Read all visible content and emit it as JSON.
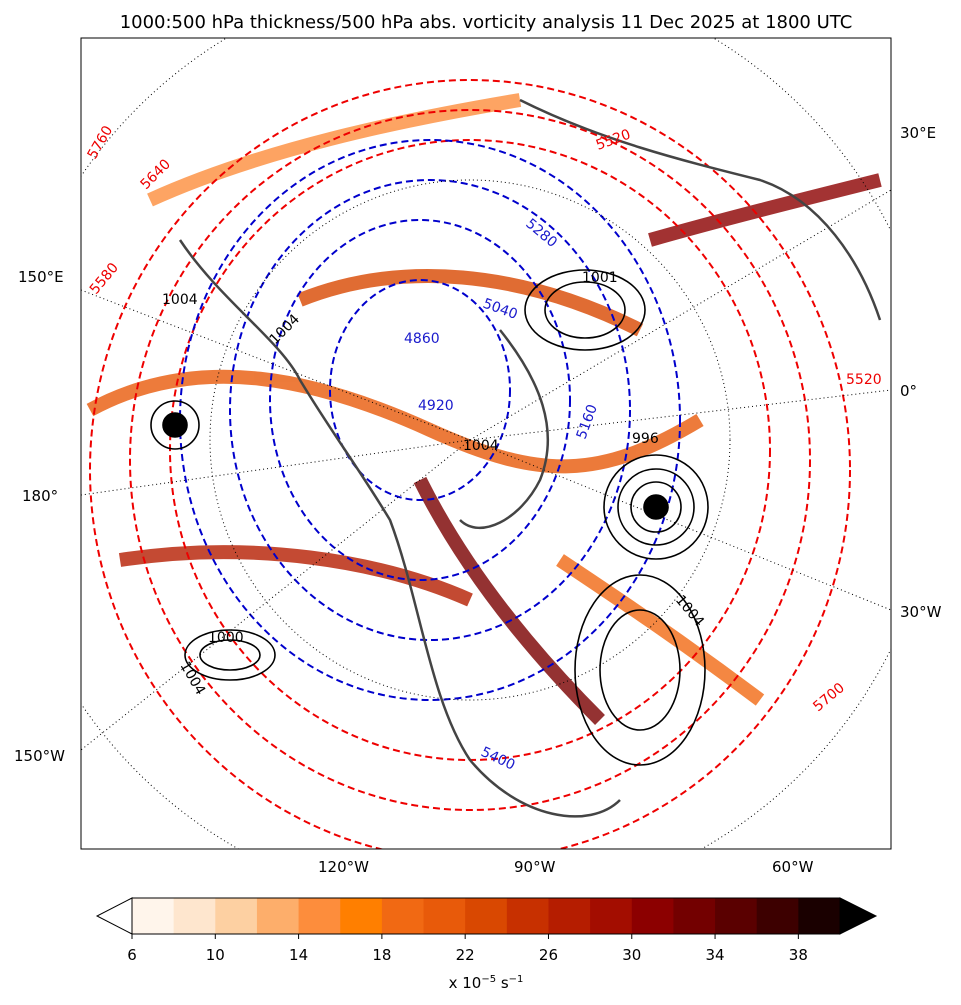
{
  "title": "1000:500 hPa thickness/500 hPa abs. vorticity analysis 11 Dec 2025 at 1800 UTC",
  "map": {
    "graticule_labels": [
      "30°E",
      "150°E",
      "0°",
      "180°",
      "30°W",
      "150°W",
      "120°W",
      "90°W",
      "60°W"
    ],
    "thickness_labels": [
      "5760",
      "5640",
      "5580",
      "5520",
      "5520",
      "5700",
      "5280",
      "5160",
      "5040",
      "4860",
      "4920",
      "5400"
    ],
    "pressure_labels": [
      "1004",
      "1001",
      "996",
      "1004",
      "1000",
      "1004",
      "1004",
      "1004"
    ]
  },
  "colorbar": {
    "lim": [
      6,
      40
    ],
    "ticks": [
      6,
      10,
      14,
      18,
      22,
      26,
      30,
      34,
      38
    ],
    "colors": [
      "#fff5eb",
      "#fee6ce",
      "#fdd0a2",
      "#fdae6b",
      "#fd8d3c",
      "#ff7f00",
      "#f16913",
      "#e85a0a",
      "#d94801",
      "#c73000",
      "#b51d00",
      "#a30d00",
      "#8c0000",
      "#730000",
      "#5a0000",
      "#3d0000",
      "#1a0000"
    ],
    "under_color": "#ffffff",
    "over_color": "#000000",
    "label": "x 10",
    "label_exponent": "−5",
    "unit": " s",
    "unit_exponent": "−1"
  }
}
